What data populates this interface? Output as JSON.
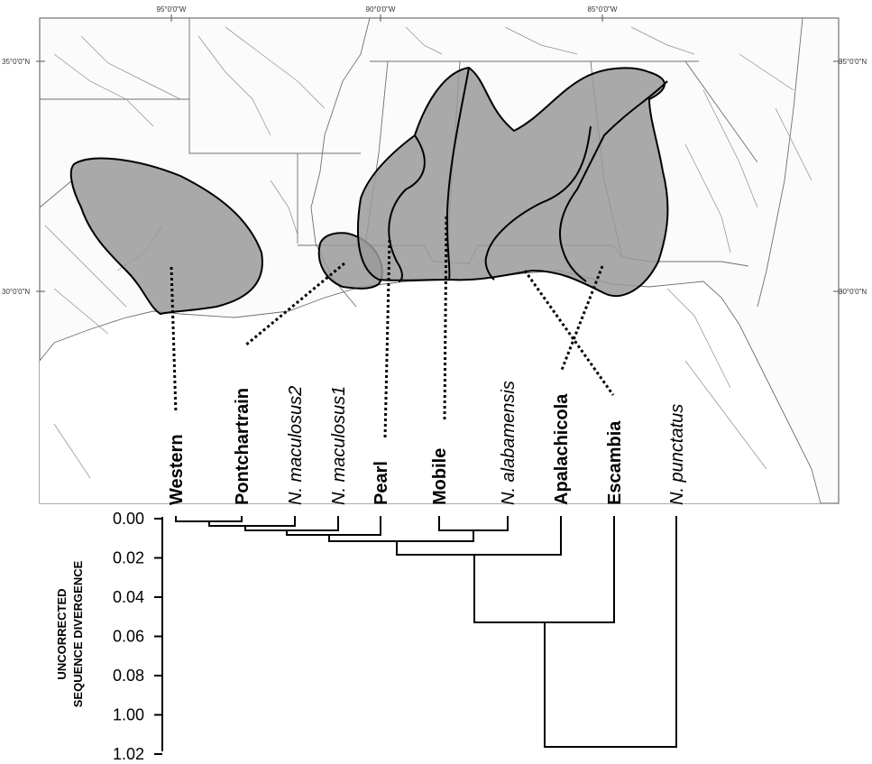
{
  "map": {
    "longitude_labels": [
      "95°0'0\"W",
      "90°0'0\"W",
      "85°0'0\"W"
    ],
    "latitude_labels_left": [
      "35°0'0\"N",
      "30°0'0\"N"
    ],
    "latitude_labels_right": [
      "35°0'0\"N",
      "30°0'0\"N"
    ]
  },
  "tips": [
    {
      "label": "Western",
      "style": "region"
    },
    {
      "label": "Pontchartrain",
      "style": "region"
    },
    {
      "label": "N. maculosus2",
      "style": "species"
    },
    {
      "label": "N. maculosus1",
      "style": "species"
    },
    {
      "label": "Pearl",
      "style": "region"
    },
    {
      "label": "Mobile",
      "style": "region"
    },
    {
      "label": "N. alabamensis",
      "style": "species"
    },
    {
      "label": "Apalachicola",
      "style": "region"
    },
    {
      "label": "Escambia",
      "style": "region"
    },
    {
      "label": "N. punctatus",
      "style": "species"
    }
  ],
  "tree_axis": {
    "label_line1": "UNCORRECTED",
    "label_line2": "SEQUENCE DIVERGENCE",
    "ticks": [
      "0.00",
      "0.02",
      "0.04",
      "0.06",
      "0.08",
      "1.00",
      "1.02"
    ]
  },
  "colors": {
    "range_fill": "#9a9a9a",
    "outline": "#000000",
    "rivers": "#8c8c8c"
  }
}
